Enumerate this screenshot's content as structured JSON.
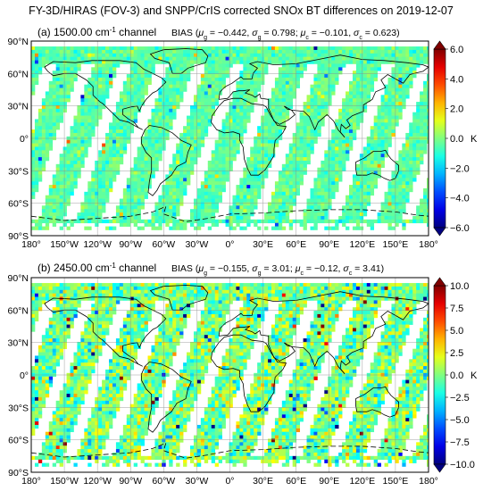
{
  "figure": {
    "title": "FY-3D/HIRAS (FOV-3) and SNPP/CrIS corrected SNOx BT differences on 2019-12-07"
  },
  "chart_data": [
    {
      "type": "heatmap",
      "panel_label": "(a) 1500.00 cm",
      "panel_label_sup": "-1",
      "panel_label_suffix": " channel",
      "bias_prefix": "BIAS (",
      "mu_g_text": "= −0.442,",
      "sigma_g_text": "= 0.798;",
      "mu_c_text": "= −0.101,",
      "sigma_c_text": "= 0.623)",
      "stats": {
        "mu_g": -0.442,
        "sigma_g": 0.798,
        "mu_c": -0.101,
        "sigma_c": 0.623
      },
      "x_ticks": [
        "180°",
        "150°W",
        "120°W",
        "90°W",
        "60°W",
        "30°W",
        "0°",
        "30°E",
        "60°E",
        "90°E",
        "120°E",
        "150°E",
        "180°"
      ],
      "y_ticks": [
        "90°N",
        "60°N",
        "30°N",
        "0°",
        "30°S",
        "60°S",
        "90°S"
      ],
      "xlim": [
        -180,
        180
      ],
      "ylim": [
        -90,
        90
      ],
      "grid": true,
      "colorbar": {
        "ticks": [
          "6.0",
          "4.0",
          "2.0",
          "0.0",
          "−2.0",
          "−4.0",
          "−6.0"
        ],
        "tick_values": [
          6,
          4,
          2,
          0,
          -2,
          -4,
          -6
        ],
        "range": [
          -6,
          6
        ],
        "unit": "K",
        "colormap": "jet",
        "extend": "both"
      }
    },
    {
      "type": "heatmap",
      "panel_label": "(b) 2450.00 cm",
      "panel_label_sup": "-1",
      "panel_label_suffix": " channel",
      "bias_prefix": "BIAS (",
      "mu_g_text": "= −0.155,",
      "sigma_g_text": "= 3.01;",
      "mu_c_text": "= −0.12,",
      "sigma_c_text": "= 3.41)",
      "stats": {
        "mu_g": -0.155,
        "sigma_g": 3.01,
        "mu_c": -0.12,
        "sigma_c": 3.41
      },
      "x_ticks": [
        "180°",
        "150°W",
        "120°W",
        "90°W",
        "60°W",
        "30°W",
        "0°",
        "30°E",
        "60°E",
        "90°E",
        "120°E",
        "150°E",
        "180°"
      ],
      "y_ticks": [
        "90°N",
        "60°N",
        "30°N",
        "0°",
        "30°S",
        "60°S",
        "90°S"
      ],
      "xlim": [
        -180,
        180
      ],
      "ylim": [
        -90,
        90
      ],
      "grid": true,
      "colorbar": {
        "ticks": [
          "10.0",
          "7.5",
          "5.0",
          "2.5",
          "0.0",
          "−2.5",
          "−5.0",
          "−7.5",
          "−10.0"
        ],
        "tick_values": [
          10,
          7.5,
          5,
          2.5,
          0,
          -2.5,
          -5,
          -7.5,
          -10
        ],
        "range": [
          -10,
          10
        ],
        "unit": "K",
        "colormap": "jet",
        "extend": "both"
      }
    }
  ]
}
